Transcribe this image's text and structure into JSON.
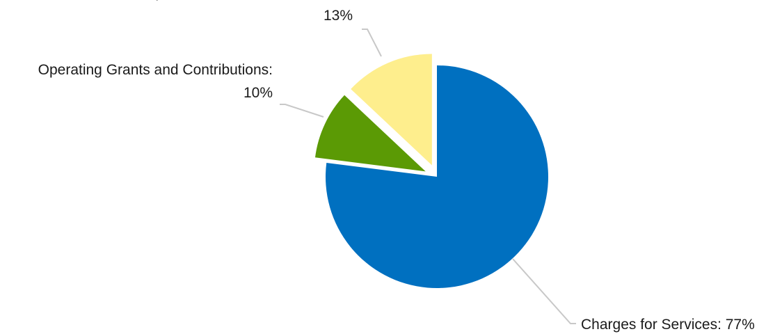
{
  "chart_data": {
    "type": "pie",
    "title": "",
    "slices": [
      {
        "name": "Charges for Services",
        "value": 77,
        "color": "#0070C0",
        "exploded": false,
        "label_lines": [
          "Charges for Services: 77%"
        ]
      },
      {
        "name": "Operating Grants and Contributions",
        "value": 10,
        "color": "#5B9A05",
        "exploded": true,
        "label_lines": [
          "Operating Grants and Contributions:",
          "10%"
        ]
      },
      {
        "name": "Capital Grants and Contributions",
        "value": 13,
        "color": "#FEEE8D",
        "exploded": true,
        "label_lines": [
          "Capital Grants and Contributions:",
          "13%"
        ]
      }
    ],
    "legend": "none",
    "data_labels": "outside with leader lines"
  }
}
